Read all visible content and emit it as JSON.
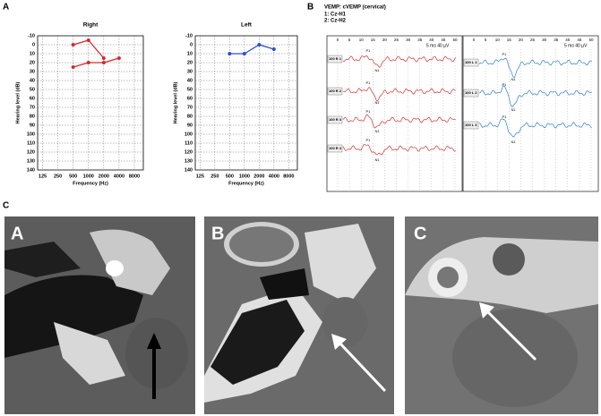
{
  "panel_labels": [
    "A",
    "B",
    "C"
  ],
  "chart_data": [
    {
      "type": "line",
      "title": "Right",
      "xlabel": "Frequency (Hz)",
      "ylabel": "Hearing level (dB)",
      "log_x": true,
      "invert_y": true,
      "grid": true,
      "xlim": [
        100,
        12000
      ],
      "xticks": [
        125,
        250,
        500,
        1000,
        2000,
        4000,
        8000
      ],
      "ylim": [
        -10,
        140
      ],
      "yticks": [
        -10,
        0,
        10,
        20,
        30,
        40,
        50,
        60,
        70,
        80,
        90,
        100,
        110,
        120,
        130,
        140
      ],
      "series": [
        {
          "color": "#d42a2a",
          "x": [
            500,
            1000,
            2000
          ],
          "values": [
            0,
            -5,
            15
          ]
        },
        {
          "color": "#d42a2a",
          "x": [
            500,
            1000,
            2000,
            4000
          ],
          "values": [
            25,
            20,
            20,
            15
          ]
        }
      ]
    },
    {
      "type": "line",
      "title": "Left",
      "xlabel": "Frequency (Hz)",
      "ylabel": "Hearing level (dB)",
      "log_x": true,
      "invert_y": true,
      "grid": true,
      "xlim": [
        100,
        12000
      ],
      "xticks": [
        125,
        250,
        500,
        1000,
        2000,
        4000,
        8000
      ],
      "ylim": [
        -10,
        140
      ],
      "yticks": [
        -10,
        0,
        10,
        20,
        30,
        40,
        50,
        60,
        70,
        80,
        90,
        100,
        110,
        120,
        130,
        140
      ],
      "series": [
        {
          "color": "#2a4fd4",
          "x": [
            500,
            1000,
            2000,
            4000
          ],
          "values": [
            10,
            10,
            0,
            5
          ]
        }
      ]
    }
  ],
  "vemp": {
    "title": "VEMP: cVEMP (cervical)",
    "channels": [
      "1: Cz-H1",
      "2: Cz-H2"
    ],
    "scale": "5 ms   40 µV",
    "time_ticks": [
      0,
      5,
      10,
      15,
      20,
      25,
      30,
      35,
      40,
      45,
      50
    ],
    "left_traces": [
      "100 R 1",
      "100 R 2",
      "100 R 3",
      "100 R 4"
    ],
    "right_traces": [
      "100 L 1",
      "100 L 2",
      "100 L 3"
    ],
    "peaks": [
      "P1",
      "N1"
    ]
  },
  "ct": {
    "labels": [
      "A",
      "B",
      "C"
    ]
  }
}
